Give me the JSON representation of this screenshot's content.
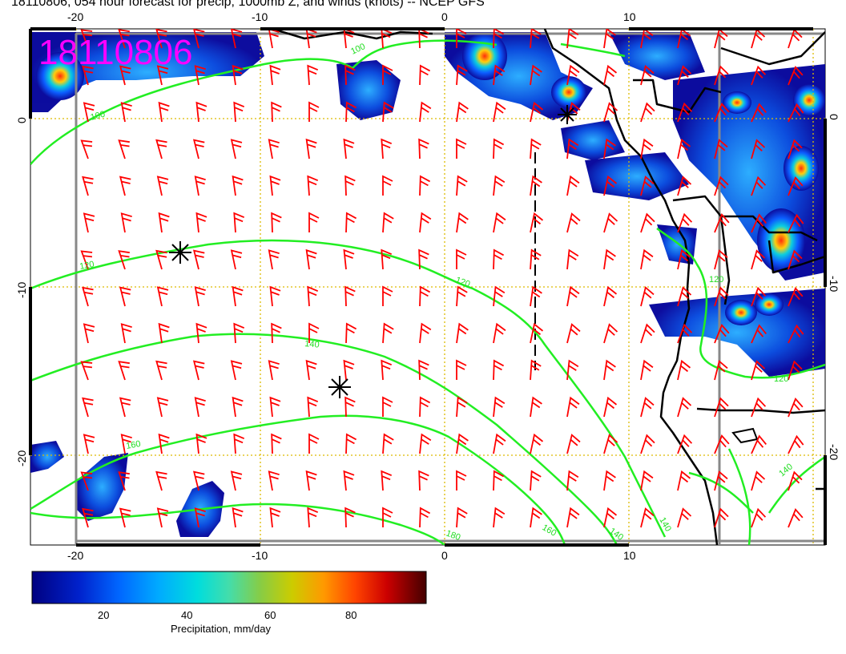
{
  "title": "18110806, 054 hour forecast for precip, 1000mb Z, and winds (knots) -- NCEP GFS",
  "date_stamp": "18110806",
  "axes": {
    "lon_ticks": [
      "-20",
      "-10",
      "0",
      "10"
    ],
    "lat_ticks": [
      "0",
      "-10",
      "-20"
    ]
  },
  "contour_labels": [
    "100",
    "100",
    "120",
    "120",
    "120",
    "140",
    "140",
    "140",
    "160",
    "160",
    "180",
    "140",
    "120"
  ],
  "colorbar": {
    "ticks": [
      "20",
      "40",
      "60",
      "80"
    ],
    "label": "Precipitation, mm/day",
    "colors": [
      "#000080",
      "#0022cc",
      "#0066ff",
      "#00aaff",
      "#00dddd",
      "#44ddaa",
      "#88cc44",
      "#cccc00",
      "#ff9900",
      "#ff4400",
      "#cc0000",
      "#880000",
      "#330000"
    ]
  },
  "colors": {
    "wind_barbs": "#ff0000",
    "height_contours": "#22dd22",
    "grid": "#ddbb00",
    "date_stamp": "#ff00ff"
  }
}
